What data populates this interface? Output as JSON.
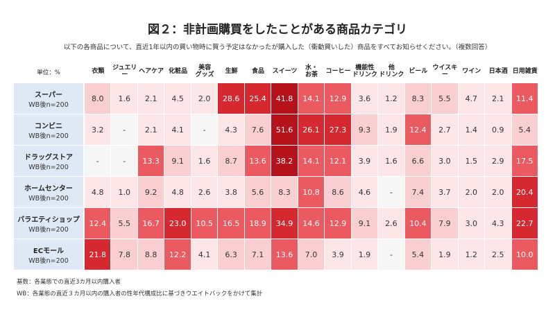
{
  "chart_data": {
    "type": "heatmap",
    "title": "図２：非計画購買をしたことがある商品カテゴリ",
    "subtitle": "以下の各商品について、直近1年以内の買い物時に買う予定はなかったが購入した（衝動買いした）商品をすべてお知らせください。（複数回答）",
    "unit_label": "単位：%",
    "categories": [
      "衣類",
      "ジュエリー",
      "ヘアケア",
      "化粧品",
      "美容\nグッズ",
      "生鮮",
      "食品",
      "スイーツ",
      "水・\nお茶",
      "コーヒー",
      "機能性\nドリンク",
      "他\nドリンク",
      "ビール",
      "ウイスキー",
      "ワイン",
      "日本酒",
      "日用雑貨"
    ],
    "rows": [
      "スーパー",
      "コンビニ",
      "ドラッグストア",
      "ホームセンター",
      "バラエティショップ",
      "ECモール"
    ],
    "row_sublabels": [
      "WB後n=200",
      "WB後n=200",
      "WB後n=200",
      "WB後n=200",
      "WB後n=200",
      "WB後n=200"
    ],
    "values": [
      [
        8.0,
        1.6,
        2.1,
        4.5,
        2.0,
        28.6,
        25.4,
        41.8,
        14.1,
        12.9,
        3.6,
        1.2,
        8.3,
        5.5,
        4.7,
        2.1,
        11.4
      ],
      [
        3.2,
        null,
        2.1,
        4.1,
        null,
        4.3,
        7.6,
        51.6,
        26.1,
        27.3,
        9.3,
        1.9,
        12.4,
        2.7,
        1.4,
        0.9,
        5.4
      ],
      [
        null,
        null,
        13.3,
        9.1,
        1.6,
        8.7,
        13.6,
        38.2,
        14.1,
        12.1,
        3.9,
        1.6,
        6.6,
        3.0,
        1.5,
        2.9,
        17.5
      ],
      [
        4.8,
        1.0,
        9.2,
        4.8,
        2.6,
        3.8,
        5.6,
        8.3,
        10.8,
        8.6,
        4.6,
        null,
        7.4,
        3.7,
        2.0,
        2.0,
        20.4
      ],
      [
        12.4,
        5.5,
        16.7,
        23.0,
        10.5,
        16.5,
        18.9,
        34.9,
        14.6,
        12.9,
        9.1,
        2.6,
        10.4,
        7.9,
        3.0,
        4.3,
        22.7
      ],
      [
        21.8,
        7.8,
        8.8,
        12.2,
        4.1,
        6.3,
        7.1,
        13.6,
        7.0,
        3.9,
        1.9,
        null,
        5.4,
        1.9,
        1.2,
        2.5,
        10.0
      ]
    ],
    "value_labels": [
      [
        "8.0",
        "1.6",
        "2.1",
        "4.5",
        "2.0",
        "28.6",
        "25.4",
        "41.8",
        "14.1",
        "12.9",
        "3.6",
        "1.2",
        "8.3",
        "5.5",
        "4.7",
        "2.1",
        "11.4"
      ],
      [
        "3.2",
        "-",
        "2.1",
        "4.1",
        "-",
        "4.3",
        "7.6",
        "51.6",
        "26.1",
        "27.3",
        "9.3",
        "1.9",
        "12.4",
        "2.7",
        "1.4",
        "0.9",
        "5.4"
      ],
      [
        "-",
        "-",
        "13.3",
        "9.1",
        "1.6",
        "8.7",
        "13.6",
        "38.2",
        "14.1",
        "12.1",
        "3.9",
        "1.6",
        "6.6",
        "3.0",
        "1.5",
        "2.9",
        "17.5"
      ],
      [
        "4.8",
        "1.0",
        "9.2",
        "4.8",
        "2.6",
        "3.8",
        "5.6",
        "8.3",
        "10.8",
        "8.6",
        "4.6",
        "-",
        "7.4",
        "3.7",
        "2.0",
        "2.0",
        "20.4"
      ],
      [
        "12.4",
        "5.5",
        "16.7",
        "23.0",
        "10.5",
        "16.5",
        "18.9",
        "34.9",
        "14.6",
        "12.9",
        "9.1",
        "2.6",
        "10.4",
        "7.9",
        "3.0",
        "4.3",
        "22.7"
      ],
      [
        "21.8",
        "7.8",
        "8.8",
        "12.2",
        "4.1",
        "6.3",
        "7.1",
        "13.6",
        "7.0",
        "3.9",
        "1.9",
        "-",
        "5.4",
        "1.9",
        "1.2",
        "2.5",
        "10.0"
      ]
    ],
    "color_steps": [
      {
        "min": 0,
        "color": "#fde6e8"
      },
      {
        "min": 5,
        "color": "#f9cfd2"
      },
      {
        "min": 10,
        "color": "#ea5a60"
      },
      {
        "min": 20,
        "color": "#d62830"
      },
      {
        "min": 35,
        "color": "#b5121b"
      }
    ],
    "null_color": "#f6f6f6",
    "notes": [
      "基数：各業態での直近3カ月以内購入者",
      "WB：各業態の直近３カ月以内の購入者の性年代構成比に基づきウエイトバックをかけて集計"
    ]
  }
}
